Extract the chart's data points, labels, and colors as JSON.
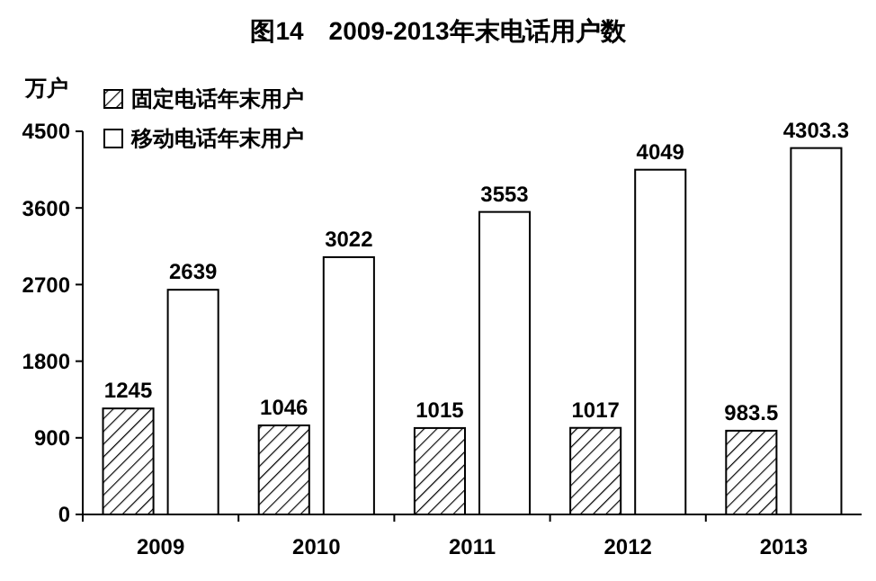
{
  "chart_data": {
    "type": "bar",
    "title": "图14　2009-2013年末电话用户数",
    "ylabel": "万户",
    "categories": [
      "2009",
      "2010",
      "2011",
      "2012",
      "2013"
    ],
    "series": [
      {
        "name": "固定电话年末用户",
        "color": "#000000",
        "values": [
          1245,
          1046,
          1015,
          1017,
          983.5
        ]
      },
      {
        "name": "移动电话年末用户",
        "color": "#ffffff",
        "values": [
          2639,
          3022,
          3553,
          4049,
          4303.3
        ]
      }
    ],
    "ylim": [
      0,
      4500
    ],
    "yticks": [
      0,
      900,
      1800,
      2700,
      3600,
      4500
    ],
    "data_labels": true,
    "legend": "top left",
    "grid": false
  }
}
